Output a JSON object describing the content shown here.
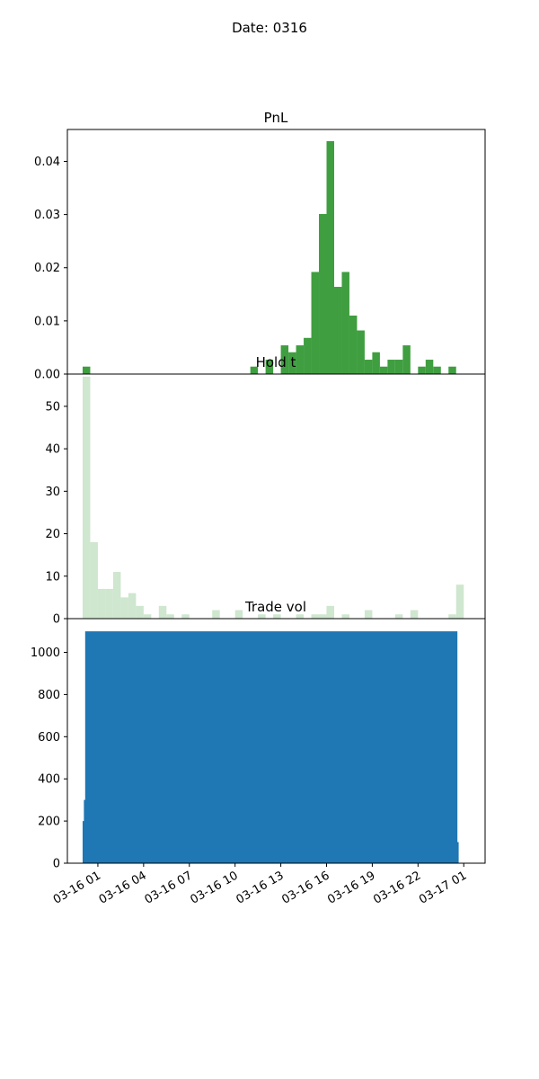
{
  "figure": {
    "suptitle": "Date: 0316"
  },
  "chart_data": [
    {
      "type": "bar",
      "title": "PnL",
      "color": "#3f9e3f",
      "ylim": [
        0,
        0.046
      ],
      "yticks": [
        0.0,
        0.01,
        0.02,
        0.03,
        0.04
      ],
      "ytick_labels": [
        "0.00",
        "0.01",
        "0.02",
        "0.03",
        "0.04"
      ],
      "bins": [
        {
          "x_start": "03-16 00:00",
          "value": 0.0014
        },
        {
          "x_start": "03-16 11:00",
          "value": 0.0014
        },
        {
          "x_start": "03-16 12:00",
          "value": 0.0027
        },
        {
          "x_start": "03-16 13:00",
          "value": 0.0054
        },
        {
          "x_start": "03-16 13:30",
          "value": 0.0041
        },
        {
          "x_start": "03-16 14:00",
          "value": 0.0054
        },
        {
          "x_start": "03-16 14:30",
          "value": 0.0068
        },
        {
          "x_start": "03-16 15:00",
          "value": 0.0192
        },
        {
          "x_start": "03-16 15:30",
          "value": 0.0301
        },
        {
          "x_start": "03-16 16:00",
          "value": 0.0438
        },
        {
          "x_start": "03-16 16:30",
          "value": 0.0164
        },
        {
          "x_start": "03-16 17:00",
          "value": 0.0192
        },
        {
          "x_start": "03-16 17:30",
          "value": 0.011
        },
        {
          "x_start": "03-16 18:00",
          "value": 0.0082
        },
        {
          "x_start": "03-16 18:30",
          "value": 0.0027
        },
        {
          "x_start": "03-16 19:00",
          "value": 0.0041
        },
        {
          "x_start": "03-16 19:30",
          "value": 0.0014
        },
        {
          "x_start": "03-16 20:00",
          "value": 0.0027
        },
        {
          "x_start": "03-16 20:30",
          "value": 0.0027
        },
        {
          "x_start": "03-16 21:00",
          "value": 0.0054
        },
        {
          "x_start": "03-16 22:00",
          "value": 0.0014
        },
        {
          "x_start": "03-16 22:30",
          "value": 0.0027
        },
        {
          "x_start": "03-16 23:00",
          "value": 0.0014
        },
        {
          "x_start": "03-16 23:30",
          "value": 0.0
        },
        {
          "x_start": "03-17 00:00",
          "value": 0.0014
        }
      ],
      "bin_width_hours": 0.5
    },
    {
      "type": "bar",
      "title": "Hold t",
      "color": "#cfe6cf",
      "ylim": [
        0,
        57.6
      ],
      "yticks": [
        0,
        10,
        20,
        30,
        40,
        50
      ],
      "ytick_labels": [
        "0",
        "10",
        "20",
        "30",
        "40",
        "50"
      ],
      "bins": [
        {
          "x_start": "03-16 00:00",
          "value": 57
        },
        {
          "x_start": "03-16 00:30",
          "value": 18
        },
        {
          "x_start": "03-16 01:00",
          "value": 7
        },
        {
          "x_start": "03-16 01:30",
          "value": 7
        },
        {
          "x_start": "03-16 02:00",
          "value": 11
        },
        {
          "x_start": "03-16 02:30",
          "value": 5
        },
        {
          "x_start": "03-16 03:00",
          "value": 6
        },
        {
          "x_start": "03-16 03:30",
          "value": 3
        },
        {
          "x_start": "03-16 04:00",
          "value": 1
        },
        {
          "x_start": "03-16 05:00",
          "value": 3
        },
        {
          "x_start": "03-16 05:30",
          "value": 1
        },
        {
          "x_start": "03-16 06:30",
          "value": 1
        },
        {
          "x_start": "03-16 08:30",
          "value": 2
        },
        {
          "x_start": "03-16 10:00",
          "value": 2
        },
        {
          "x_start": "03-16 11:30",
          "value": 1
        },
        {
          "x_start": "03-16 12:30",
          "value": 1
        },
        {
          "x_start": "03-16 14:00",
          "value": 1
        },
        {
          "x_start": "03-16 15:00",
          "value": 1
        },
        {
          "x_start": "03-16 15:30",
          "value": 1
        },
        {
          "x_start": "03-16 16:00",
          "value": 3
        },
        {
          "x_start": "03-16 17:00",
          "value": 1
        },
        {
          "x_start": "03-16 18:30",
          "value": 2
        },
        {
          "x_start": "03-16 20:30",
          "value": 1
        },
        {
          "x_start": "03-16 21:30",
          "value": 2
        },
        {
          "x_start": "03-16 24:00",
          "value": 1
        },
        {
          "x_start": "03-17 00:30",
          "value": 8
        }
      ],
      "bin_width_hours": 0.5
    },
    {
      "type": "area",
      "title": "Trade vol",
      "color": "#1f77b4",
      "ylim": [
        0,
        1160
      ],
      "yticks": [
        0,
        200,
        400,
        600,
        800,
        1000
      ],
      "ytick_labels": [
        "0",
        "200",
        "400",
        "600",
        "800",
        "1000"
      ],
      "xticks": [
        "03-16 01",
        "03-16 04",
        "03-16 07",
        "03-16 10",
        "03-16 13",
        "03-16 16",
        "03-16 19",
        "03-16 22",
        "03-17 01"
      ],
      "points": [
        {
          "x": "03-16 00:00",
          "y": 200
        },
        {
          "x": "03-16 00:05",
          "y": 300
        },
        {
          "x": "03-16 00:10",
          "y": 1100
        },
        {
          "x": "03-17 00:30",
          "y": 1100
        },
        {
          "x": "03-17 00:35",
          "y": 100
        },
        {
          "x": "03-17 00:40",
          "y": 100
        }
      ]
    }
  ]
}
